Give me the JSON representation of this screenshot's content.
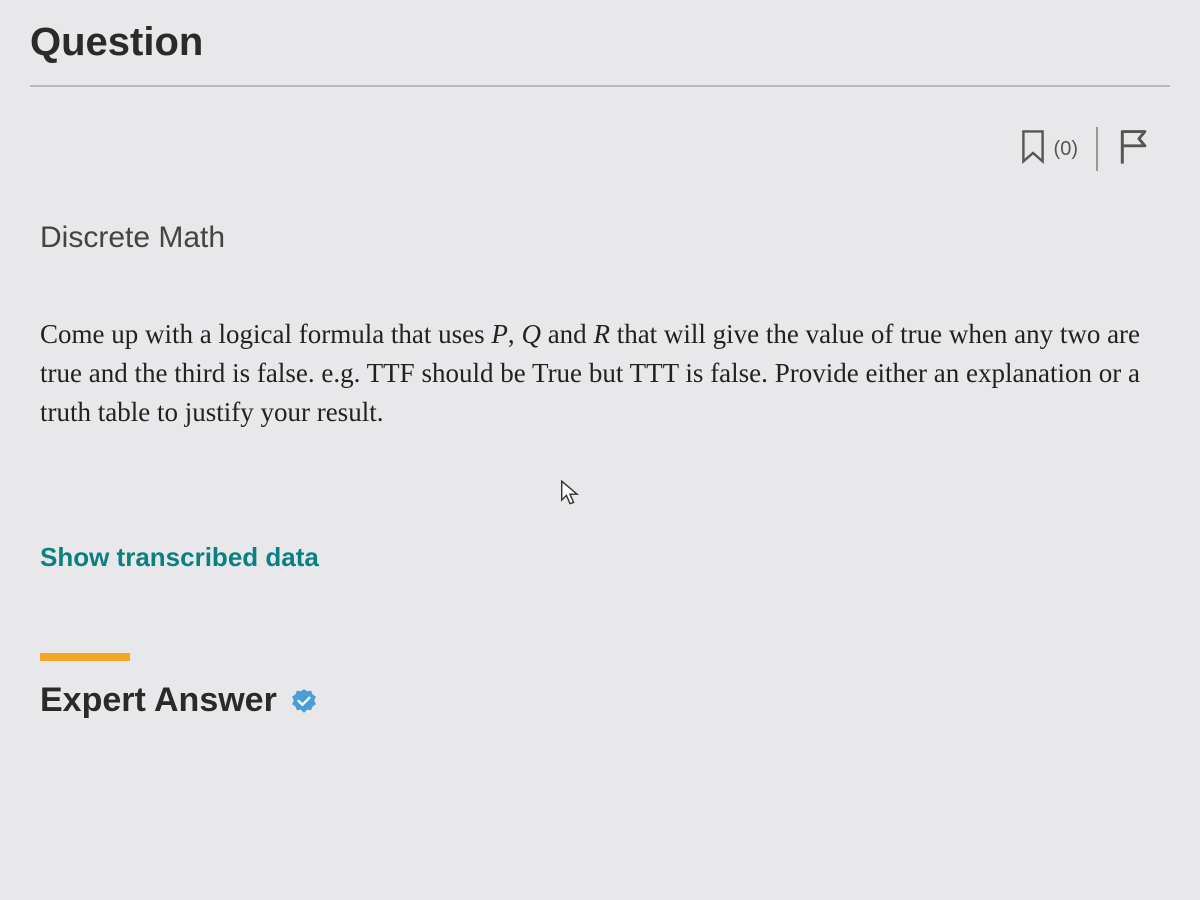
{
  "header": {
    "title": "Question"
  },
  "actions": {
    "bookmark_count": "(0)"
  },
  "subject": {
    "label": "Discrete Math"
  },
  "question": {
    "body_html": "Come up with a logical formula that uses <i>P</i>, <i>Q</i> and <i>R</i> that will give the value of true when any two are true and the third is false. e.g. TTF should be True but TTT is false. Provide either an explanation or a truth table to justify your result."
  },
  "links": {
    "show_transcribed": "Show transcribed data"
  },
  "answer": {
    "heading": "Expert Answer"
  },
  "colors": {
    "accent_orange": "#f5a623",
    "teal_link": "#0a8080",
    "verified_badge": "#4a9ed8",
    "icon_stroke": "#555555"
  }
}
